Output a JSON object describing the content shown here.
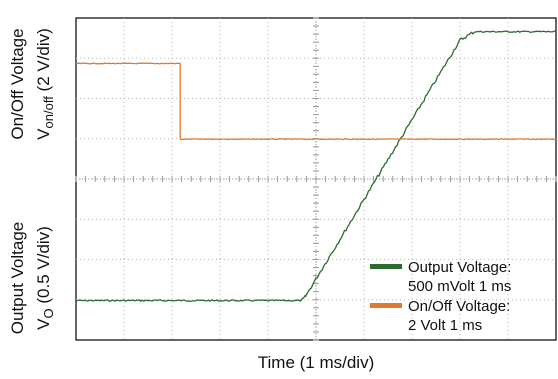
{
  "chart_data": {
    "type": "line",
    "title": "",
    "xlabel": "Time (1 ms/div)",
    "ylabel_top": {
      "line1": "On/Off Voltage",
      "line2_main": "V",
      "line2_sub": "on/off",
      "line2_rest": " (2 V/div)"
    },
    "ylabel_bottom": {
      "line1": "Output Voltage",
      "line2_main": "V",
      "line2_sub": "O",
      "line2_rest": "  (0.5 V/div)"
    },
    "x_divisions": 10,
    "y_divisions": 8,
    "x_range_div": [
      0,
      10
    ],
    "y_range_div": [
      0,
      8
    ],
    "grid": true,
    "legend_position": "bottom-right",
    "series": [
      {
        "name": "Output Voltage:",
        "note": "500 mVolt 1 ms",
        "color": "#2e6b2e",
        "points_div": [
          [
            0,
            0.98
          ],
          [
            4.7,
            0.98
          ],
          [
            4.78,
            1.08
          ],
          [
            8.0,
            7.45
          ],
          [
            8.3,
            7.66
          ],
          [
            10,
            7.66
          ]
        ]
      },
      {
        "name": "On/Off Voltage:",
        "note": "2 Volt 1 ms",
        "color": "#e07a2e",
        "points_div": [
          [
            0,
            6.87
          ],
          [
            2.17,
            6.87
          ],
          [
            2.17,
            4.99
          ],
          [
            10,
            4.99
          ]
        ]
      }
    ],
    "colors": {
      "grid": "#b8b8b8",
      "center": "#999999",
      "border": "#000000"
    }
  }
}
